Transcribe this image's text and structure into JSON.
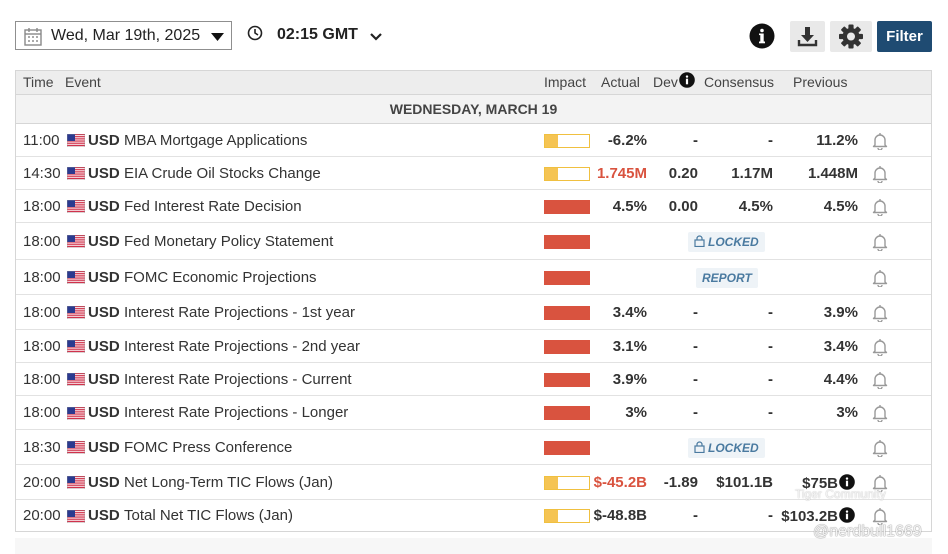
{
  "toolbar": {
    "date": "Wed, Mar 19th, 2025",
    "time": "02:15 GMT",
    "filter_label": "Filter",
    "icons": [
      "calendar-icon",
      "clock-icon",
      "info-icon",
      "download-icon",
      "gear-icon"
    ]
  },
  "table": {
    "headers": {
      "time": "Time",
      "event": "Event",
      "impact": "Impact",
      "actual": "Actual",
      "dev": "Dev",
      "consensus": "Consensus",
      "previous": "Previous"
    },
    "day_label": "WEDNESDAY, MARCH 19",
    "colors": {
      "high_impact": "#d9533f",
      "low_impact": "#f5c453",
      "negative_value": "#d9533f"
    },
    "rows": [
      {
        "time": "11:00",
        "currency": "USD",
        "event": "MBA Mortgage Applications",
        "impact": "low",
        "actual": "-6.2%",
        "dev": "-",
        "consensus": "-",
        "previous": "11.2%"
      },
      {
        "time": "14:30",
        "currency": "USD",
        "event": "EIA Crude Oil Stocks Change",
        "impact": "low",
        "actual": "1.745M",
        "actual_color": "red",
        "dev": "0.20",
        "consensus": "1.17M",
        "previous": "1.448M"
      },
      {
        "time": "18:00",
        "currency": "USD",
        "event": "Fed Interest Rate Decision",
        "impact": "high",
        "actual": "4.5%",
        "dev": "0.00",
        "consensus": "4.5%",
        "previous": "4.5%"
      },
      {
        "time": "18:00",
        "currency": "USD",
        "event": "Fed Monetary Policy Statement",
        "impact": "high",
        "badge": "LOCKED"
      },
      {
        "time": "18:00",
        "currency": "USD",
        "event": "FOMC Economic Projections",
        "impact": "high",
        "badge": "REPORT"
      },
      {
        "time": "18:00",
        "currency": "USD",
        "event": "Interest Rate Projections - 1st year",
        "impact": "high",
        "actual": "3.4%",
        "dev": "-",
        "consensus": "-",
        "previous": "3.9%"
      },
      {
        "time": "18:00",
        "currency": "USD",
        "event": "Interest Rate Projections - 2nd year",
        "impact": "high",
        "actual": "3.1%",
        "dev": "-",
        "consensus": "-",
        "previous": "3.4%"
      },
      {
        "time": "18:00",
        "currency": "USD",
        "event": "Interest Rate Projections - Current",
        "impact": "high",
        "actual": "3.9%",
        "dev": "-",
        "consensus": "-",
        "previous": "4.4%"
      },
      {
        "time": "18:00",
        "currency": "USD",
        "event": "Interest Rate Projections - Longer",
        "impact": "high",
        "actual": "3%",
        "dev": "-",
        "consensus": "-",
        "previous": "3%"
      },
      {
        "time": "18:30",
        "currency": "USD",
        "event": "FOMC Press Conference",
        "impact": "high",
        "badge": "LOCKED"
      },
      {
        "time": "20:00",
        "currency": "USD",
        "event": "Net Long-Term TIC Flows (Jan)",
        "impact": "low",
        "actual": "$-45.2B",
        "actual_color": "red",
        "dev": "-1.89",
        "consensus": "$101.1B",
        "previous": "$75B",
        "previous_info": true
      },
      {
        "time": "20:00",
        "currency": "USD",
        "event": "Total Net TIC Flows (Jan)",
        "impact": "low",
        "actual": "$-48.8B",
        "dev": "-",
        "consensus": "-",
        "previous": "$103.2B",
        "previous_info": true
      }
    ]
  },
  "watermark": {
    "community": "Tiger Community",
    "user": "@nerdbull1669"
  }
}
